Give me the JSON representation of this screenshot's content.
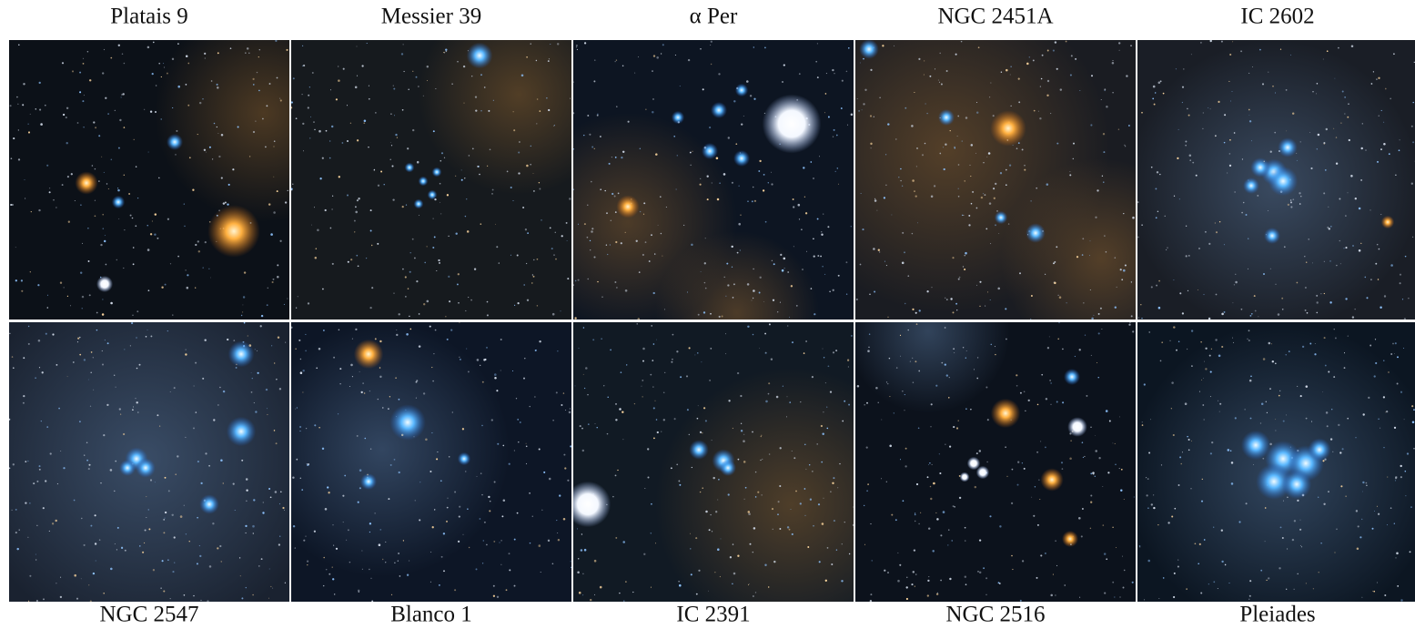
{
  "top_row": [
    "Platais 9",
    "Messier 39",
    "α Per",
    "NGC 2451A",
    "IC 2602"
  ],
  "bottom_row": [
    "NGC 2547",
    "Blanco 1",
    "IC 2391",
    "NGC 2516",
    "Pleiades"
  ]
}
